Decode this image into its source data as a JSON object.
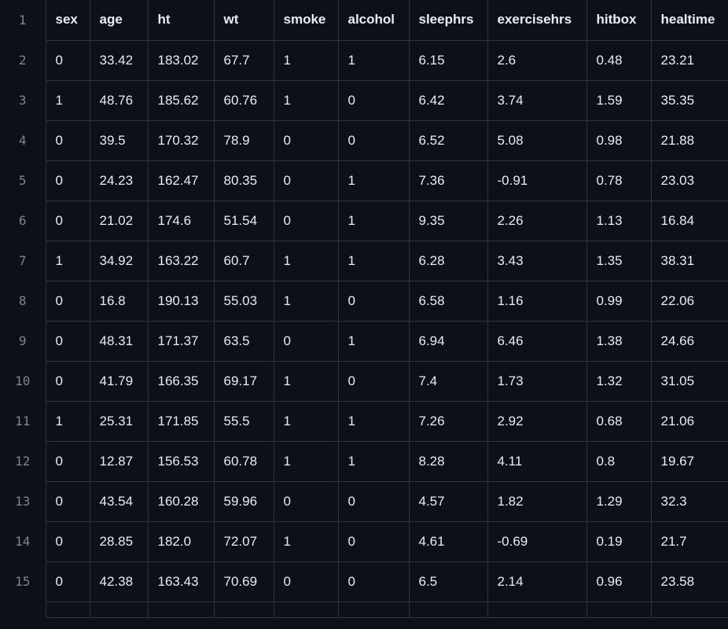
{
  "csv": {
    "line_numbers": [
      "1",
      "2",
      "3",
      "4",
      "5",
      "6",
      "7",
      "8",
      "9",
      "10",
      "11",
      "12",
      "13",
      "14",
      "15"
    ],
    "headers": [
      "sex",
      "age",
      "ht",
      "wt",
      "smoke",
      "alcohol",
      "sleephrs",
      "exercisehrs",
      "hitbox",
      "healtime"
    ],
    "rows": [
      [
        "0",
        "33.42",
        "183.02",
        "67.7",
        "1",
        "1",
        "6.15",
        "2.6",
        "0.48",
        "23.21"
      ],
      [
        "1",
        "48.76",
        "185.62",
        "60.76",
        "1",
        "0",
        "6.42",
        "3.74",
        "1.59",
        "35.35"
      ],
      [
        "0",
        "39.5",
        "170.32",
        "78.9",
        "0",
        "0",
        "6.52",
        "5.08",
        "0.98",
        "21.88"
      ],
      [
        "0",
        "24.23",
        "162.47",
        "80.35",
        "0",
        "1",
        "7.36",
        "-0.91",
        "0.78",
        "23.03"
      ],
      [
        "0",
        "21.02",
        "174.6",
        "51.54",
        "0",
        "1",
        "9.35",
        "2.26",
        "1.13",
        "16.84"
      ],
      [
        "1",
        "34.92",
        "163.22",
        "60.7",
        "1",
        "1",
        "6.28",
        "3.43",
        "1.35",
        "38.31"
      ],
      [
        "0",
        "16.8",
        "190.13",
        "55.03",
        "1",
        "0",
        "6.58",
        "1.16",
        "0.99",
        "22.06"
      ],
      [
        "0",
        "48.31",
        "171.37",
        "63.5",
        "0",
        "1",
        "6.94",
        "6.46",
        "1.38",
        "24.66"
      ],
      [
        "0",
        "41.79",
        "166.35",
        "69.17",
        "1",
        "0",
        "7.4",
        "1.73",
        "1.32",
        "31.05"
      ],
      [
        "1",
        "25.31",
        "171.85",
        "55.5",
        "1",
        "1",
        "7.26",
        "2.92",
        "0.68",
        "21.06"
      ],
      [
        "0",
        "12.87",
        "156.53",
        "60.78",
        "1",
        "1",
        "8.28",
        "4.11",
        "0.8",
        "19.67"
      ],
      [
        "0",
        "43.54",
        "160.28",
        "59.96",
        "0",
        "0",
        "4.57",
        "1.82",
        "1.29",
        "32.3"
      ],
      [
        "0",
        "28.85",
        "182.0",
        "72.07",
        "1",
        "0",
        "4.61",
        "-0.69",
        "0.19",
        "21.7"
      ],
      [
        "0",
        "42.38",
        "163.43",
        "70.69",
        "0",
        "0",
        "6.5",
        "2.14",
        "0.96",
        "23.58"
      ]
    ]
  }
}
